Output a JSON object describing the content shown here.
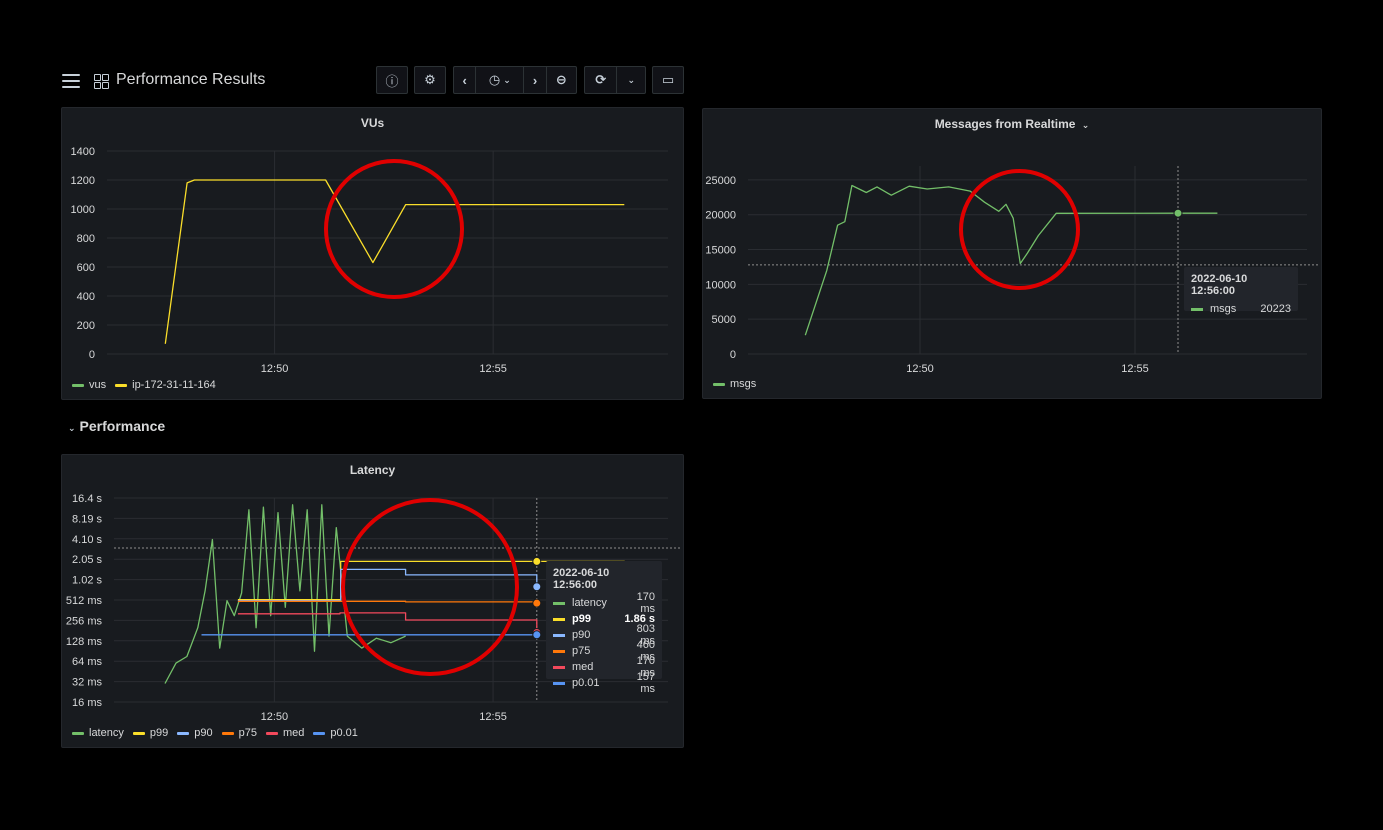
{
  "dashboard": {
    "title": "Performance Results",
    "icons": [
      "menu-icon",
      "dashboard-grid-icon"
    ],
    "toolbar": {
      "info_icon": "ⓘ",
      "settings_icon": "⚙",
      "prev_icon": "‹",
      "timepicker_icon": "◷",
      "timepicker_caret": "⌄",
      "next_icon": "›",
      "zoom_out_icon": "⊖",
      "refresh_icon": "⟳",
      "refresh_caret": "⌄",
      "tv_mode_icon": "▭"
    }
  },
  "row": {
    "title": "Performance",
    "chevron": "⌄"
  },
  "vus_panel": {
    "title": "VUs",
    "legend": [
      {
        "name": "vus",
        "color": "#73bf69"
      },
      {
        "name": "ip-172-31-11-164",
        "color": "#fade2a"
      }
    ]
  },
  "messages_panel": {
    "title": "Messages from Realtime",
    "title_caret": "⌄",
    "legend": [
      {
        "name": "msgs",
        "color": "#73bf69"
      }
    ],
    "tooltip": {
      "time": "2022-06-10 12:56:00",
      "series": "msgs",
      "value": "20223"
    }
  },
  "latency_panel": {
    "title": "Latency",
    "legend": [
      {
        "name": "latency",
        "color": "#73bf69"
      },
      {
        "name": "p99",
        "color": "#fade2a"
      },
      {
        "name": "p90",
        "color": "#8ab8ff"
      },
      {
        "name": "p75",
        "color": "#ff780a"
      },
      {
        "name": "med",
        "color": "#f2495c"
      },
      {
        "name": "p0.01",
        "color": "#5794f2"
      }
    ],
    "tooltip": {
      "time": "2022-06-10 12:56:00",
      "rows": [
        {
          "name": "latency",
          "value": "170 ms",
          "color": "#73bf69",
          "highlight": false
        },
        {
          "name": "p99",
          "value": "1.86 s",
          "color": "#fade2a",
          "highlight": true
        },
        {
          "name": "p90",
          "value": "803 ms",
          "color": "#8ab8ff",
          "highlight": false
        },
        {
          "name": "p75",
          "value": "460 ms",
          "color": "#ff780a",
          "highlight": false
        },
        {
          "name": "med",
          "value": "170 ms",
          "color": "#f2495c",
          "highlight": false
        },
        {
          "name": "p0.01",
          "value": "157 ms",
          "color": "#5794f2",
          "highlight": false
        }
      ]
    }
  },
  "chart_data": [
    {
      "type": "line",
      "title": "VUs",
      "x_ticks": [
        "12:50",
        "12:55"
      ],
      "y_ticks": [
        "0",
        "200",
        "400",
        "600",
        "800",
        "1000",
        "1200",
        "1400"
      ],
      "ylim": [
        0,
        1400
      ],
      "grid": true,
      "legend_placement": "bottom-left",
      "series": [
        {
          "name": "vus",
          "x": [],
          "y": []
        },
        {
          "name": "ip-172-31-11-164",
          "x": [
            "12:47:30",
            "12:48:00",
            "12:48:10",
            "12:51:10",
            "12:52:15",
            "12:53:00",
            "12:58:00"
          ],
          "y": [
            70,
            1180,
            1200,
            1200,
            630,
            1030,
            1030
          ]
        }
      ]
    },
    {
      "type": "line",
      "title": "Messages from Realtime",
      "x_ticks": [
        "12:50",
        "12:55"
      ],
      "y_ticks": [
        "0",
        "5000",
        "10000",
        "15000",
        "20000",
        "25000"
      ],
      "ylim": [
        0,
        27000
      ],
      "grid": true,
      "legend_placement": "bottom-left",
      "series": [
        {
          "name": "msgs",
          "x": [
            "12:47:20",
            "12:47:50",
            "12:48:05",
            "12:48:15",
            "12:48:25",
            "12:48:45",
            "12:49:00",
            "12:49:20",
            "12:49:45",
            "12:50:10",
            "12:50:40",
            "12:51:10",
            "12:51:30",
            "12:51:50",
            "12:52:00",
            "12:52:10",
            "12:52:20",
            "12:52:30",
            "12:52:45",
            "12:53:10",
            "12:56:00",
            "12:56:55"
          ],
          "y": [
            2700,
            12000,
            18500,
            19000,
            24200,
            23200,
            24000,
            22800,
            24100,
            23700,
            24000,
            23400,
            21800,
            20500,
            21500,
            19500,
            13000,
            14500,
            17000,
            20200,
            20223,
            20223
          ]
        }
      ]
    },
    {
      "type": "line",
      "title": "Latency",
      "y_scale": "log",
      "x_ticks": [
        "12:50",
        "12:55"
      ],
      "y_ticks": [
        "16 ms",
        "32 ms",
        "64 ms",
        "128 ms",
        "256 ms",
        "512 ms",
        "1.02 s",
        "2.05 s",
        "4.10 s",
        "8.19 s",
        "16.4 s"
      ],
      "grid": true,
      "legend_placement": "bottom-left",
      "series": [
        {
          "name": "latency",
          "unit": "ms",
          "x": [
            "12:47:30",
            "12:47:45",
            "12:48:00",
            "12:48:15",
            "12:48:25",
            "12:48:35",
            "12:48:45",
            "12:48:55",
            "12:49:05",
            "12:49:15",
            "12:49:25",
            "12:49:35",
            "12:49:45",
            "12:49:55",
            "12:50:05",
            "12:50:15",
            "12:50:25",
            "12:50:35",
            "12:50:45",
            "12:50:55",
            "12:51:05",
            "12:51:15",
            "12:51:25",
            "12:51:40",
            "12:52:00",
            "12:52:20",
            "12:52:40",
            "12:53:00"
          ],
          "y": [
            30,
            60,
            75,
            200,
            700,
            4000,
            100,
            500,
            300,
            650,
            11000,
            200,
            12000,
            300,
            10000,
            400,
            13000,
            700,
            11000,
            90,
            13000,
            150,
            6000,
            150,
            100,
            140,
            120,
            150
          ]
        },
        {
          "name": "p99",
          "unit": "ms",
          "x": [
            "12:49:10",
            "12:51:30",
            "12:51:31",
            "12:58:00"
          ],
          "y": [
            520,
            520,
            1900,
            1860
          ]
        },
        {
          "name": "p90",
          "unit": "ms",
          "x": [
            "12:49:10",
            "12:51:30",
            "12:51:31",
            "12:53:00",
            "12:56:00"
          ],
          "y": [
            500,
            500,
            1450,
            1200,
            803
          ]
        },
        {
          "name": "p75",
          "unit": "ms",
          "x": [
            "12:49:10",
            "12:53:00",
            "12:56:00"
          ],
          "y": [
            490,
            480,
            460
          ]
        },
        {
          "name": "med",
          "unit": "ms",
          "x": [
            "12:49:10",
            "12:51:30",
            "12:53:00",
            "12:56:00"
          ],
          "y": [
            320,
            330,
            260,
            170
          ]
        },
        {
          "name": "p0.01",
          "unit": "ms",
          "x": [
            "12:48:20",
            "12:52:00",
            "12:56:00"
          ],
          "y": [
            157,
            157,
            157
          ]
        }
      ]
    }
  ]
}
